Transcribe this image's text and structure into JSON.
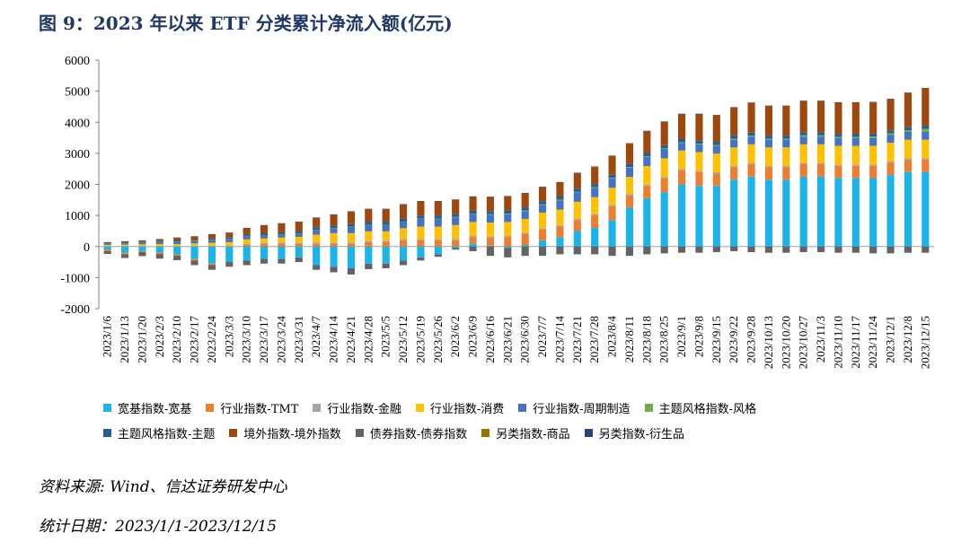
{
  "title": "图 9：2023 年以来 ETF 分类累计净流入额(亿元)",
  "source": "资料来源: Wind、信达证券研发中心",
  "date_range": "统计日期：2023/1/1-2023/12/15",
  "chart_data": {
    "type": "bar",
    "stacked": true,
    "title": "2023 年以来 ETF 分类累计净流入额(亿元)",
    "ylim": [
      -2000,
      6000
    ],
    "yticks": [
      "-2000",
      "-1000",
      "0",
      "1000",
      "2000",
      "3000",
      "4000",
      "5000",
      "6000"
    ],
    "legend_position": "bottom",
    "categories": [
      "2023/1/6",
      "2023/1/13",
      "2023/1/20",
      "2023/2/3",
      "2023/2/10",
      "2023/2/17",
      "2023/2/24",
      "2023/3/3",
      "2023/3/10",
      "2023/3/17",
      "2023/3/24",
      "2023/3/31",
      "2023/4/7",
      "2023/4/14",
      "2023/4/21",
      "2023/4/28",
      "2023/5/5",
      "2023/5/12",
      "2023/5/19",
      "2023/5/26",
      "2023/6/2",
      "2023/6/9",
      "2023/6/16",
      "2023/6/21",
      "2023/6/30",
      "2023/7/7",
      "2023/7/14",
      "2023/7/21",
      "2023/7/28",
      "2023/8/4",
      "2023/8/11",
      "2023/8/18",
      "2023/8/25",
      "2023/9/1",
      "2023/9/8",
      "2023/9/15",
      "2023/9/22",
      "2023/9/28",
      "2023/10/13",
      "2023/10/20",
      "2023/10/27",
      "2023/11/3",
      "2023/11/10",
      "2023/11/17",
      "2023/11/24",
      "2023/12/1",
      "2023/12/8",
      "2023/12/15"
    ],
    "series": [
      {
        "name": "宽基指数-宽基",
        "color": "#1bb4ea",
        "values": [
          -100,
          -200,
          -150,
          -200,
          -250,
          -400,
          -550,
          -500,
          -450,
          -400,
          -400,
          -350,
          -600,
          -650,
          -700,
          -550,
          -550,
          -450,
          -350,
          -250,
          -50,
          100,
          30,
          -50,
          50,
          200,
          300,
          500,
          600,
          850,
          1250,
          1550,
          1750,
          2000,
          1950,
          1950,
          2150,
          2250,
          2150,
          2150,
          2250,
          2250,
          2200,
          2200,
          2200,
          2300,
          2400,
          2400
        ]
      },
      {
        "name": "行业指数-TMT",
        "color": "#ed7d31",
        "values": [
          -40,
          -50,
          -30,
          -40,
          -40,
          -50,
          -50,
          0,
          50,
          80,
          100,
          100,
          100,
          100,
          100,
          150,
          150,
          200,
          200,
          200,
          200,
          200,
          250,
          300,
          350,
          350,
          350,
          350,
          400,
          450,
          400,
          400,
          450,
          450,
          450,
          400,
          400,
          400,
          400,
          400,
          400,
          400,
          400,
          400,
          400,
          400,
          400,
          400
        ]
      },
      {
        "name": "行业指数-金融",
        "color": "#a5a5a5",
        "values": [
          20,
          20,
          20,
          20,
          20,
          20,
          20,
          20,
          30,
          30,
          30,
          30,
          30,
          30,
          30,
          40,
          40,
          40,
          40,
          40,
          40,
          40,
          40,
          40,
          40,
          40,
          40,
          40,
          40,
          40,
          40,
          40,
          40,
          40,
          40,
          40,
          40,
          40,
          40,
          40,
          40,
          40,
          40,
          40,
          40,
          40,
          40,
          40
        ]
      },
      {
        "name": "行业指数-消费",
        "color": "#ffc000",
        "values": [
          30,
          40,
          50,
          60,
          60,
          80,
          100,
          120,
          150,
          150,
          160,
          180,
          250,
          300,
          300,
          300,
          300,
          350,
          400,
          400,
          450,
          450,
          450,
          450,
          450,
          500,
          500,
          550,
          550,
          550,
          550,
          600,
          600,
          600,
          600,
          600,
          600,
          600,
          600,
          600,
          600,
          600,
          600,
          600,
          600,
          600,
          600,
          600
        ]
      },
      {
        "name": "行业指数-周期制造",
        "color": "#4472c4",
        "values": [
          30,
          40,
          50,
          60,
          80,
          80,
          100,
          100,
          100,
          100,
          100,
          100,
          150,
          150,
          200,
          200,
          200,
          200,
          250,
          250,
          250,
          250,
          250,
          250,
          250,
          250,
          300,
          300,
          300,
          300,
          300,
          300,
          300,
          250,
          250,
          250,
          250,
          250,
          250,
          250,
          250,
          250,
          250,
          250,
          250,
          250,
          250,
          250
        ]
      },
      {
        "name": "主题风格指数-风格",
        "color": "#70ad47",
        "values": [
          5,
          5,
          5,
          5,
          5,
          5,
          5,
          5,
          5,
          5,
          5,
          5,
          10,
          10,
          10,
          10,
          10,
          10,
          10,
          10,
          10,
          10,
          20,
          20,
          20,
          20,
          20,
          20,
          20,
          20,
          20,
          20,
          20,
          20,
          20,
          30,
          30,
          30,
          30,
          30,
          40,
          40,
          40,
          40,
          50,
          50,
          50,
          100
        ]
      },
      {
        "name": "主题风格指数-主题",
        "color": "#255e91",
        "values": [
          20,
          20,
          20,
          30,
          30,
          30,
          40,
          40,
          50,
          60,
          60,
          70,
          80,
          80,
          80,
          100,
          100,
          100,
          100,
          100,
          100,
          100,
          100,
          100,
          100,
          100,
          100,
          100,
          100,
          100,
          100,
          100,
          100,
          100,
          100,
          100,
          100,
          100,
          100,
          100,
          100,
          100,
          100,
          100,
          100,
          100,
          100,
          100
        ]
      },
      {
        "name": "境外指数-境外指数",
        "color": "#9e480e",
        "values": [
          20,
          30,
          40,
          50,
          80,
          100,
          120,
          150,
          200,
          250,
          280,
          300,
          300,
          350,
          400,
          400,
          400,
          450,
          450,
          450,
          450,
          450,
          450,
          450,
          450,
          450,
          450,
          500,
          550,
          600,
          650,
          700,
          750,
          800,
          850,
          850,
          900,
          950,
          950,
          950,
          1000,
          1000,
          1000,
          1000,
          1000,
          1000,
          1100,
          1200
        ]
      },
      {
        "name": "债券指数-债券指数",
        "color": "#636363",
        "values": [
          -100,
          -120,
          -130,
          -150,
          -150,
          -150,
          -150,
          -150,
          -150,
          -150,
          -150,
          -150,
          -150,
          -180,
          -200,
          -180,
          -150,
          -150,
          -100,
          -80,
          -50,
          -150,
          -300,
          -300,
          -300,
          -300,
          -250,
          -250,
          -250,
          -300,
          -300,
          -250,
          -220,
          -200,
          -200,
          -180,
          -150,
          -180,
          -200,
          -200,
          -180,
          -180,
          -200,
          -200,
          -220,
          -220,
          -200,
          -200
        ]
      },
      {
        "name": "另类指数-商品",
        "color": "#997300",
        "values": [
          10,
          10,
          10,
          10,
          10,
          10,
          10,
          10,
          10,
          10,
          10,
          10,
          10,
          10,
          10,
          10,
          10,
          10,
          10,
          10,
          10,
          10,
          10,
          10,
          10,
          10,
          10,
          10,
          10,
          10,
          10,
          10,
          10,
          10,
          10,
          10,
          10,
          10,
          10,
          10,
          10,
          10,
          10,
          10,
          10,
          10,
          10,
          10
        ]
      },
      {
        "name": "另类指数-衍生品",
        "color": "#264478",
        "values": [
          5,
          5,
          5,
          5,
          5,
          5,
          5,
          5,
          5,
          5,
          5,
          5,
          5,
          5,
          5,
          5,
          5,
          5,
          5,
          5,
          5,
          5,
          5,
          5,
          5,
          5,
          5,
          5,
          5,
          5,
          5,
          5,
          5,
          5,
          5,
          5,
          5,
          5,
          5,
          5,
          5,
          5,
          5,
          5,
          5,
          5,
          5,
          5
        ]
      }
    ]
  }
}
